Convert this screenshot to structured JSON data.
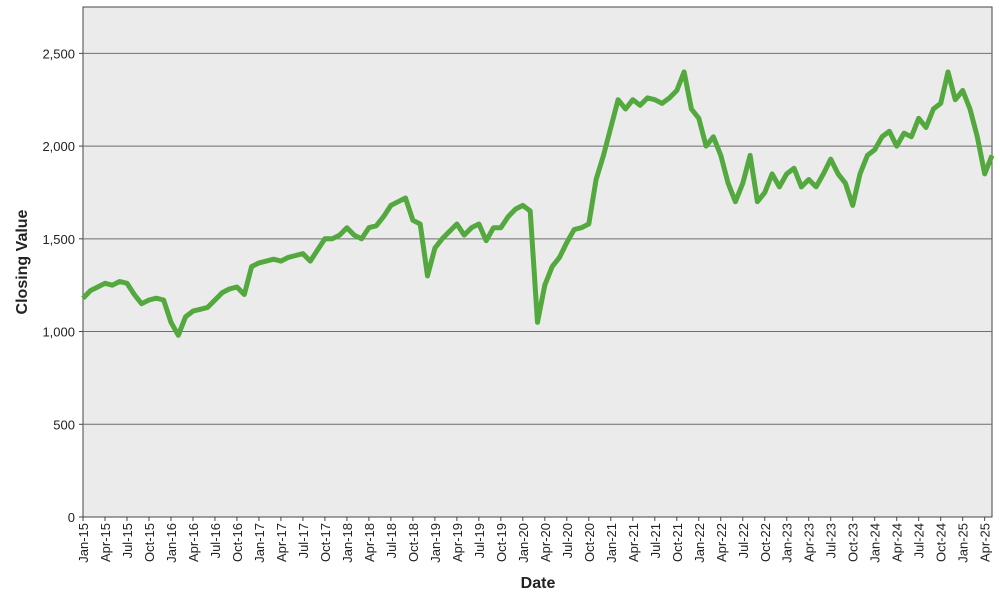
{
  "chart_data": {
    "type": "line",
    "x_label": "Date",
    "y_label": "Closing Value",
    "color": "#53a83e",
    "grid": true,
    "ylim": [
      0,
      2750
    ],
    "yticks": [
      0,
      500,
      {
        "value": 1000,
        "label": "1,000"
      },
      {
        "value": 1500,
        "label": "1,500"
      },
      {
        "value": 2000,
        "label": "2,000"
      },
      {
        "value": 2500,
        "label": "2,500"
      }
    ],
    "categories": [
      "Jan-15",
      null,
      null,
      "Apr-15",
      null,
      null,
      "Jul-15",
      null,
      null,
      "Oct-15",
      null,
      null,
      "Jan-16",
      null,
      null,
      "Apr-16",
      null,
      null,
      "Jul-16",
      null,
      null,
      "Oct-16",
      null,
      null,
      "Jan-17",
      null,
      null,
      "Apr-17",
      null,
      null,
      "Jul-17",
      null,
      null,
      "Oct-17",
      null,
      null,
      "Jan-18",
      null,
      null,
      "Apr-18",
      null,
      null,
      "Jul-18",
      null,
      null,
      "Oct-18",
      null,
      null,
      "Jan-19",
      null,
      null,
      "Apr-19",
      null,
      null,
      "Jul-19",
      null,
      null,
      "Oct-19",
      null,
      null,
      "Jan-20",
      null,
      null,
      "Apr-20",
      null,
      null,
      "Jul-20",
      null,
      null,
      "Oct-20",
      null,
      null,
      "Jan-21",
      null,
      null,
      "Apr-21",
      null,
      null,
      "Jul-21",
      null,
      null,
      "Oct-21",
      null,
      null,
      "Jan-22",
      null,
      null,
      "Apr-22",
      null,
      null,
      "Jul-22",
      null,
      null,
      "Oct-22",
      null,
      null,
      "Jan-23",
      null,
      null,
      "Apr-23",
      null,
      null,
      "Jul-23",
      null,
      null,
      "Oct-23",
      null,
      null,
      "Jan-24",
      null,
      null,
      "Apr-24",
      null,
      null,
      "Jul-24",
      null,
      null,
      "Oct-24",
      null,
      null,
      "Jan-25",
      null,
      null,
      "Apr-25",
      null
    ],
    "values": [
      1180,
      1220,
      1240,
      1260,
      1250,
      1270,
      1260,
      1200,
      1150,
      1170,
      1180,
      1170,
      1050,
      980,
      1080,
      1110,
      1120,
      1130,
      1170,
      1210,
      1230,
      1240,
      1200,
      1350,
      1370,
      1380,
      1390,
      1380,
      1400,
      1410,
      1420,
      1380,
      1440,
      1500,
      1500,
      1520,
      1560,
      1520,
      1500,
      1560,
      1570,
      1620,
      1680,
      1700,
      1720,
      1600,
      1580,
      1300,
      1450,
      1500,
      1540,
      1580,
      1520,
      1560,
      1580,
      1490,
      1560,
      1560,
      1620,
      1660,
      1680,
      1650,
      1050,
      1250,
      1350,
      1400,
      1480,
      1550,
      1560,
      1580,
      1820,
      1950,
      2100,
      2250,
      2200,
      2250,
      2220,
      2260,
      2250,
      2230,
      2260,
      2300,
      2400,
      2200,
      2150,
      2000,
      2050,
      1950,
      1800,
      1700,
      1800,
      1950,
      1700,
      1750,
      1850,
      1780,
      1850,
      1880,
      1780,
      1820,
      1780,
      1850,
      1930,
      1850,
      1800,
      1680,
      1850,
      1950,
      1980,
      2050,
      2080,
      2000,
      2070,
      2050,
      2150,
      2100,
      2200,
      2230,
      2400,
      2250,
      2300,
      2200,
      2050,
      1850,
      1950
    ]
  }
}
